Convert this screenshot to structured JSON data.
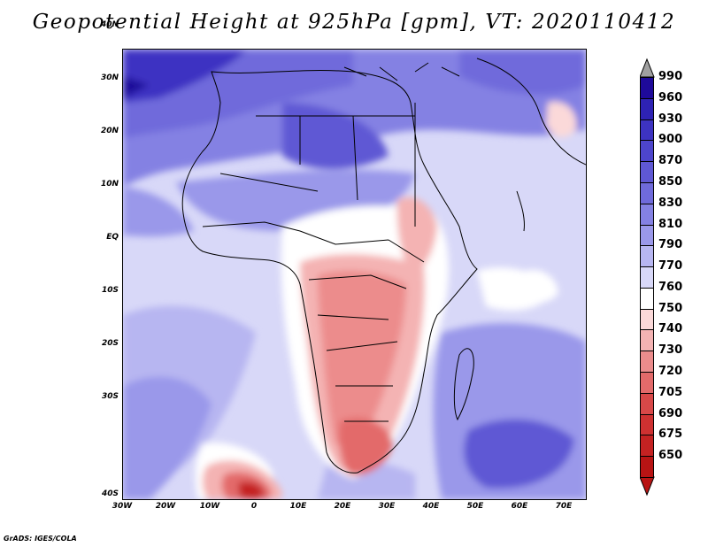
{
  "title": "Geopotential Height at 925hPa [gpm], VT: 2020110412",
  "lat_labels": [
    "40N",
    "30N",
    "20N",
    "10N",
    "EQ",
    "10S",
    "20S",
    "30S",
    "40S"
  ],
  "lon_labels": [
    "30W",
    "20W",
    "10W",
    "0",
    "10E",
    "20E",
    "30E",
    "40E",
    "50E",
    "60E",
    "70E"
  ],
  "colorbar": {
    "labels": [
      "990",
      "960",
      "930",
      "900",
      "870",
      "850",
      "830",
      "810",
      "790",
      "770",
      "760",
      "750",
      "740",
      "730",
      "720",
      "705",
      "690",
      "675",
      "650"
    ],
    "colors": [
      "#1e0a9a",
      "#2e22b4",
      "#3d33c2",
      "#4d45cc",
      "#5f58d4",
      "#6f6adb",
      "#8481e3",
      "#9a98ea",
      "#b7b6f1",
      "#d8d8f8",
      "#ffffff",
      "#fbd9d9",
      "#f4b3b3",
      "#ec8c8c",
      "#e36a6a",
      "#d84848",
      "#ce3131",
      "#c42222",
      "#b81414"
    ],
    "top_color": "#a0a0a0",
    "bottom_color": "#b81414"
  },
  "footer": "GrADS: IGES/COLA"
}
